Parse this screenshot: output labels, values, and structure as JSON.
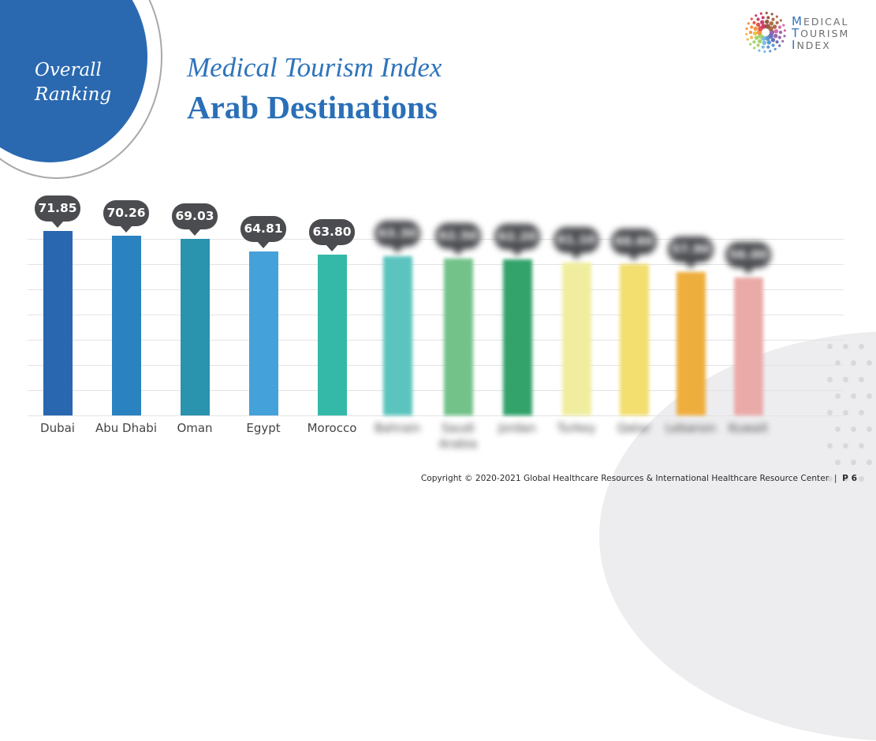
{
  "slide": {
    "badge": {
      "line1": "Overall",
      "line2": "Ranking"
    },
    "title": "Medical Tourism Index",
    "subtitle": "Arab Destinations",
    "logo": {
      "line1_cap": "M",
      "line1_rest": "EDICAL",
      "line2_cap": "T",
      "line2_rest": "OURISM",
      "line3_cap": "I",
      "line3_rest": "NDEX"
    },
    "footer": {
      "copyright": "Copyright © 2020-2021 Global Healthcare Resources & International Healthcare Resource Center",
      "separator": "|",
      "page": "P 6"
    },
    "colors": {
      "brand_blue": "#2a69b0",
      "title_blue": "#2f74bb",
      "bubble": "#4b4c50"
    }
  },
  "chart_data": {
    "type": "bar",
    "title": "Medical Tourism Index — Arab Destinations (Overall Ranking)",
    "xlabel": "",
    "ylabel": "",
    "grid": true,
    "legend": null,
    "categories": [
      "Dubai",
      "Abu Dhabi",
      "Oman",
      "Egypt",
      "Morocco",
      "Bahrain",
      "Saudi Arabia",
      "Jordan",
      "Turkey",
      "Qatar",
      "Lebanon",
      "Kuwait"
    ],
    "values": [
      71.85,
      70.26,
      69.03,
      64.81,
      63.8,
      63.3,
      62.5,
      62.2,
      61.1,
      60.6,
      57.9,
      56.0
    ],
    "value_labels": [
      "71.85",
      "70.26",
      "69.03",
      "64.81",
      "63.80",
      "63.30",
      "62.50",
      "62.20",
      "61.10",
      "60.60",
      "57.90",
      "56.00"
    ],
    "blurred_from_index": 5,
    "colors": [
      "#2967b0",
      "#2b82c0",
      "#2a93ad",
      "#45a1d9",
      "#34b9a8",
      "#5cc4be",
      "#72c28a",
      "#33a36b",
      "#f0ee9e",
      "#f3de70",
      "#eeae3e",
      "#eaaaa8"
    ],
    "ylim": [
      9.1,
      80
    ]
  }
}
